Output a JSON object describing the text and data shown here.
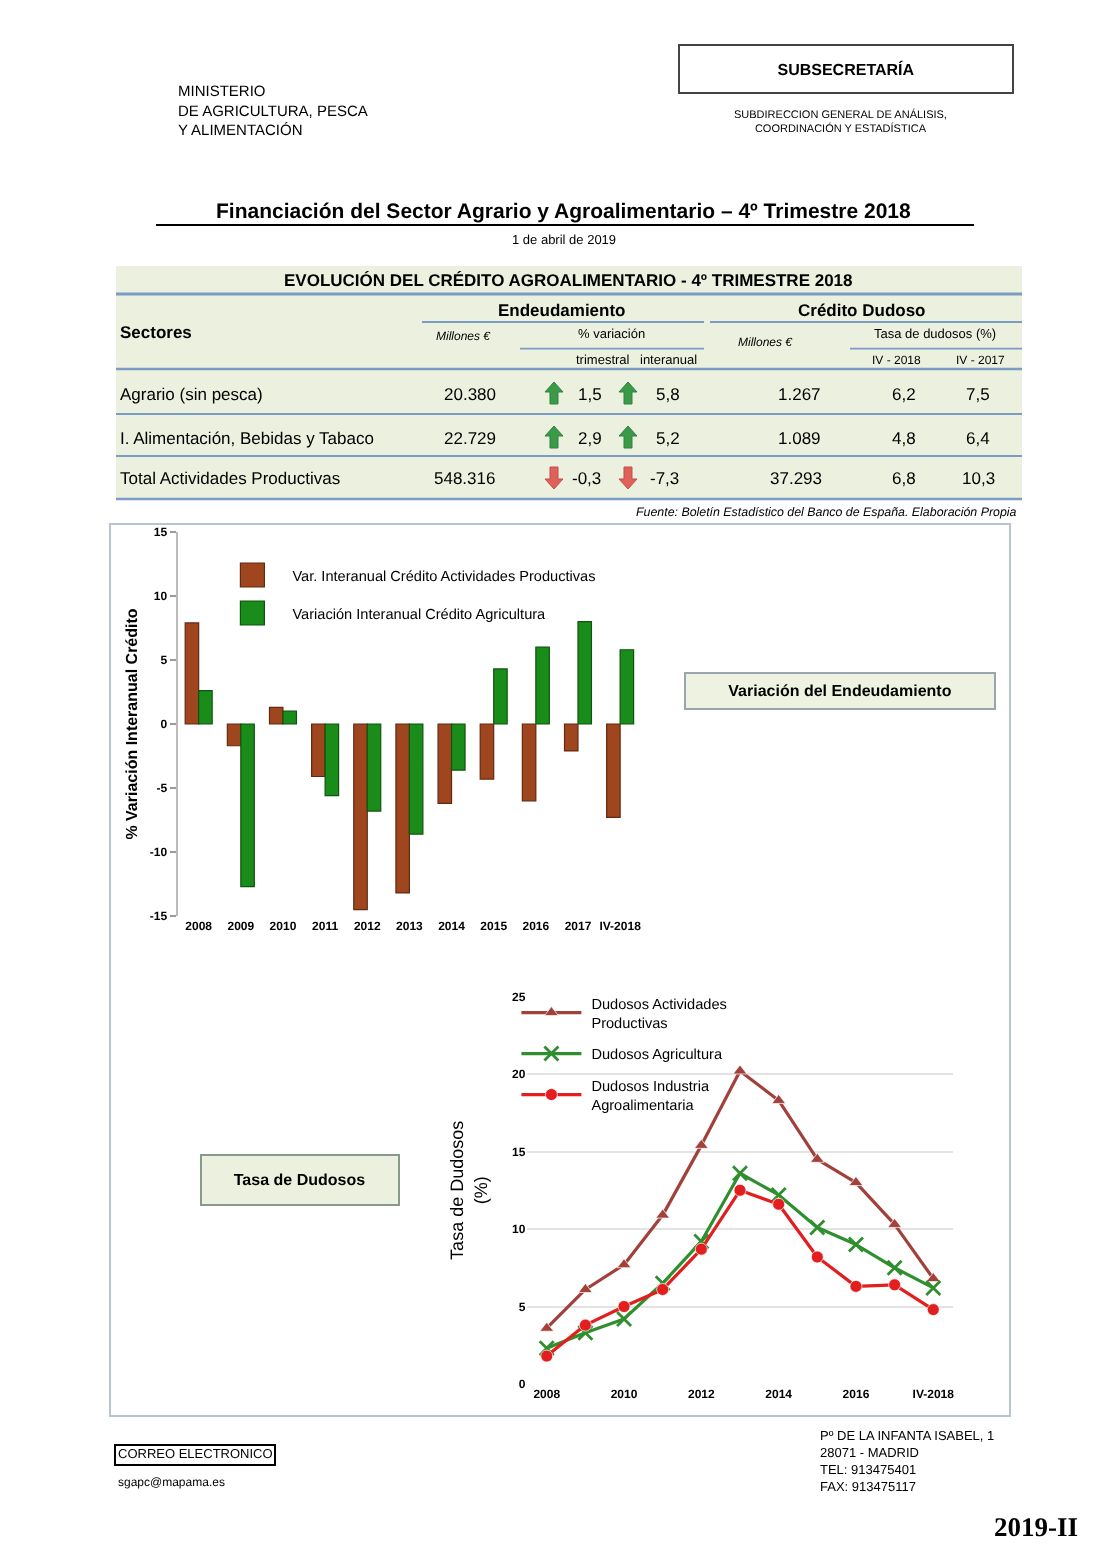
{
  "chart_data": [
    {
      "type": "other",
      "title": "Financiación del Sector Agrario y Agroalimentario – 4º Trimestre 2018",
      "subtitle": "1 de abril de 2019",
      "annotations": [
        "MINISTERIO\nDE AGRICULTURA, PESCA\nY ALIMENTACIÓN",
        "SUBSECRETARÍA",
        "SUBDIRECCION GENERAL DE ANÁLISIS,\nCOORDINACIÓN Y ESTADÍSTICA"
      ]
    },
    {
      "type": "other",
      "title": "EVOLUCIÓN DEL CRÉDITO AGROALIMENTARIO - 4º TRIMESTRE 2018",
      "annotations": [
        "Sectores",
        "Endeudamiento",
        "Crédito Dudoso",
        "Millones €",
        "% variación",
        "trimestral",
        "interanual",
        "Millones €",
        "Tasa de dudosos (%)",
        "IV - 2018",
        "IV - 2017",
        "Fuente: Boletín Estadístico del Banco de España. Elaboración Propia"
      ],
      "y_categories": [
        "Agrario (sin pesca)",
        "I. Alimentación, Bebidas y Tabaco",
        "Total Actividades Productivas"
      ],
      "cell_labels": [
        [
          "20.380",
          "1,5",
          "5,8",
          "1.267",
          "6,2",
          "7,5"
        ],
        [
          "22.729",
          "2,9",
          "5,2",
          "1.089",
          "4,8",
          "6,4"
        ],
        [
          "548.316",
          "-0,3",
          "-7,3",
          "37.293",
          "6,8",
          "10,3"
        ]
      ]
    },
    {
      "type": "bar",
      "ylabel": "% Variación Interanual Crédito",
      "categories": [
        "2008",
        "2009",
        "2010",
        "2011",
        "2012",
        "2013",
        "2014",
        "2015",
        "2016",
        "2017",
        "IV-2018"
      ],
      "series": [
        {
          "name": "Var. Interanual Crédito Actividades Productivas",
          "color": "#a0461f",
          "values": [
            7.9,
            -1.7,
            1.3,
            -4.1,
            -14.5,
            -13.2,
            -6.2,
            -4.3,
            -6.0,
            -2.1,
            -7.3
          ]
        },
        {
          "name": "Variación Interanual Crédito Agricultura",
          "color": "#1a8c1a",
          "values": [
            2.6,
            -12.7,
            1.0,
            -5.6,
            -6.8,
            -8.6,
            -3.6,
            4.3,
            6.0,
            8.0,
            5.8
          ]
        }
      ],
      "ylim": [
        -15,
        15
      ],
      "yticks": [
        -15,
        -10,
        -5,
        0,
        5,
        10,
        15
      ],
      "grid": false,
      "legend": "top"
    },
    {
      "type": "other",
      "title": "Variación del Endeudamiento"
    },
    {
      "type": "other",
      "title": "Tasa de Dudosos"
    },
    {
      "type": "line",
      "ylabel": "Tasa de Dudosos\n(%)",
      "categories": [
        "2008",
        null,
        "2010",
        null,
        "2012",
        null,
        "2014",
        null,
        "2016",
        null,
        "IV-2018"
      ],
      "series": [
        {
          "name": "Dudosos Actividades\nProductivas",
          "color": "#a2413b",
          "marker": "triangle",
          "values": [
            3.6,
            6.1,
            7.7,
            10.9,
            15.4,
            20.2,
            18.3,
            14.5,
            13.0,
            10.3,
            6.8
          ]
        },
        {
          "name": "Dudosos Agricultura",
          "color": "#2f8f2f",
          "marker": "cross",
          "values": [
            2.3,
            3.3,
            4.2,
            6.5,
            9.2,
            13.6,
            12.2,
            10.1,
            9.0,
            7.5,
            6.2
          ]
        },
        {
          "name": "Dudosos Industria\nAgroalimentaria",
          "color": "#e31e1e",
          "marker": "circle",
          "values": [
            1.8,
            3.8,
            5.0,
            6.1,
            8.7,
            12.5,
            11.6,
            8.2,
            6.3,
            6.4,
            4.8
          ]
        }
      ],
      "ylim": [
        0,
        25
      ],
      "yticks": [
        0,
        5,
        10,
        15,
        20,
        25
      ],
      "grid": "y",
      "legend": "top left"
    },
    {
      "type": "other",
      "annotations": [
        "CORREO ELECTRONICO",
        "sgapc@mapama.es",
        "Pº DE LA INFANTA ISABEL, 1\n28071 - MADRID\nTEL: 913475401\nFAX: 913475117",
        "2019-II"
      ]
    }
  ]
}
